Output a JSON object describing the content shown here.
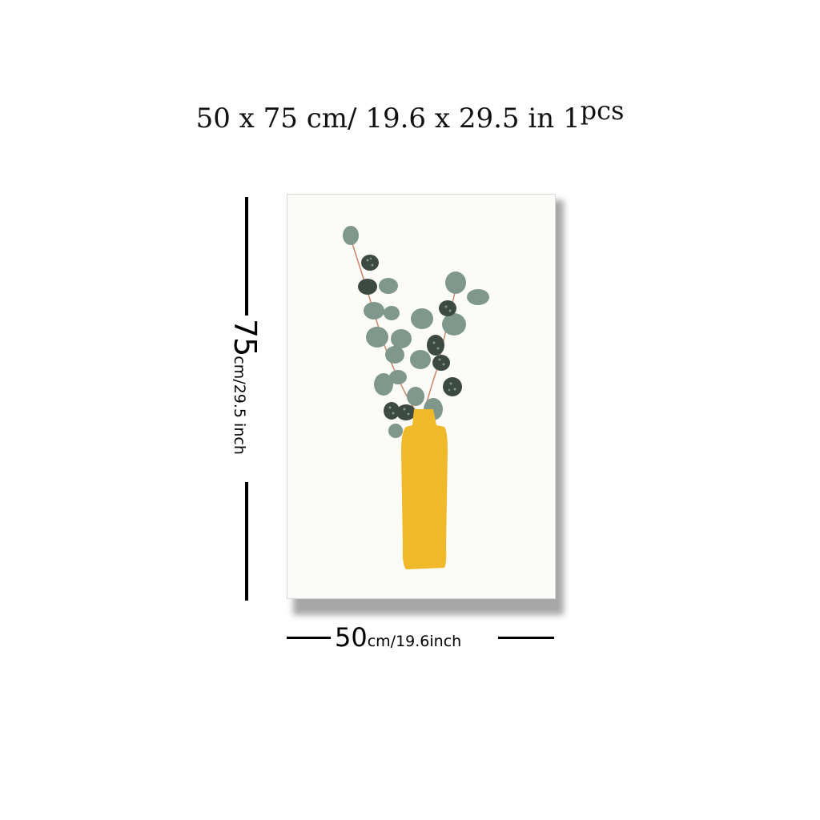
{
  "headline": {
    "w": "50",
    "x1": "x",
    "h": "75",
    "unit_cm": "cm/",
    "w_in": "19.6",
    "x2": "x",
    "h_in": "29.5",
    "unit_in": "in",
    "count": "1",
    "count_unit": "pcs"
  },
  "height_label": {
    "value": "75",
    "unit": "cm/29.5 inch"
  },
  "width_label": {
    "value": "50",
    "unit": "cm/19.6inch"
  },
  "colors": {
    "vase": "#f0b92a",
    "leaf_light": "#7f978c",
    "leaf_dark": "#3c4a43",
    "stem": "#c8866a",
    "canvas": "#fbfbf8"
  }
}
